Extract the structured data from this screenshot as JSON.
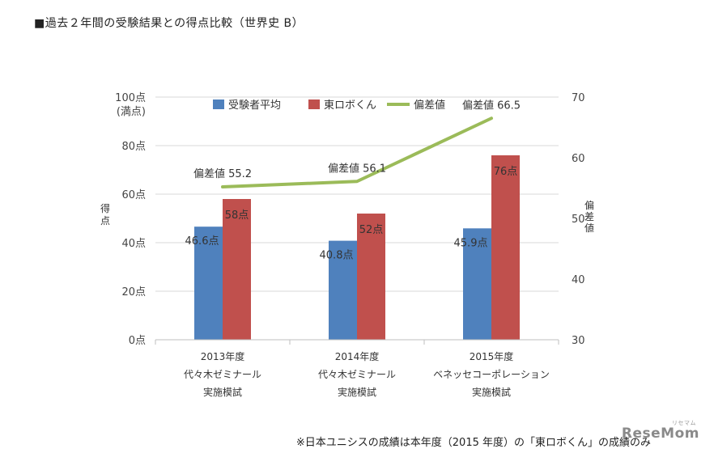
{
  "page_title": "■過去２年間の受験結果との得点比較（世界史 B）",
  "footnote": "※日本ユニシスの成績は本年度（2015 年度）の「東ロボくん」の成績のみ",
  "watermark": {
    "main": "ReseMom",
    "sub": "リセマム"
  },
  "chart_data": {
    "type": "bar",
    "categories": [
      [
        "2013年度",
        "代々木ゼミナール",
        "実施模試"
      ],
      [
        "2014年度",
        "代々木ゼミナール",
        "実施模試"
      ],
      [
        "2015年度",
        "ベネッセコーポレーション",
        "実施模試"
      ]
    ],
    "series": [
      {
        "name": "受験者平均",
        "type": "bar",
        "axis": "left",
        "color": "#4f81bd",
        "values": [
          46.6,
          40.8,
          45.9
        ],
        "labels": [
          "46.6点",
          "40.8点",
          "45.9点"
        ]
      },
      {
        "name": "東ロボくん",
        "type": "bar",
        "axis": "left",
        "color": "#c0504d",
        "values": [
          58,
          52,
          76
        ],
        "labels": [
          "58点",
          "52点",
          "76点"
        ]
      },
      {
        "name": "偏差値",
        "type": "line",
        "axis": "right",
        "color": "#9bbb59",
        "values": [
          55.2,
          56.1,
          66.5
        ],
        "labels": [
          "偏差値 55.2",
          "偏差値 56.1",
          "偏差値 66.5"
        ]
      }
    ],
    "y_left": {
      "label": "得点",
      "min": 0,
      "max": 100,
      "step": 20,
      "tick_labels": [
        "0点",
        "20点",
        "40点",
        "60点",
        "80点",
        "100点"
      ],
      "top_sublabel": "(満点)"
    },
    "y_right": {
      "label": "偏差値",
      "min": 30,
      "max": 70,
      "step": 10,
      "tick_labels": [
        "30",
        "40",
        "50",
        "60",
        "70"
      ]
    },
    "grid": true,
    "legend_position": "top"
  }
}
